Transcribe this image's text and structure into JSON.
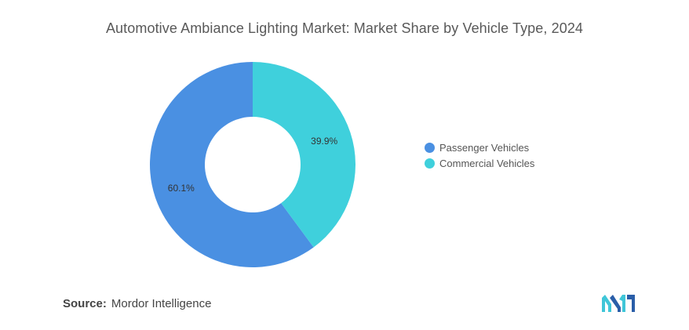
{
  "chart_data": {
    "type": "pie",
    "title": "Automotive Ambiance Lighting Market: Market Share by Vehicle Type, 2024",
    "categories": [
      "Passenger Vehicles",
      "Commercial Vehicles"
    ],
    "values": [
      60.1,
      39.9
    ],
    "labels": [
      "60.1%",
      "39.9%"
    ],
    "colors": [
      "#4a90e2",
      "#3fd0dc"
    ],
    "donut": true,
    "legend_position": "right"
  },
  "source": {
    "label": "Source:",
    "text": "Mordor Intelligence"
  },
  "logo": {
    "icon": "mordor-intelligence-logo",
    "colors": [
      "#2a5ea8",
      "#3fc6d8"
    ]
  }
}
